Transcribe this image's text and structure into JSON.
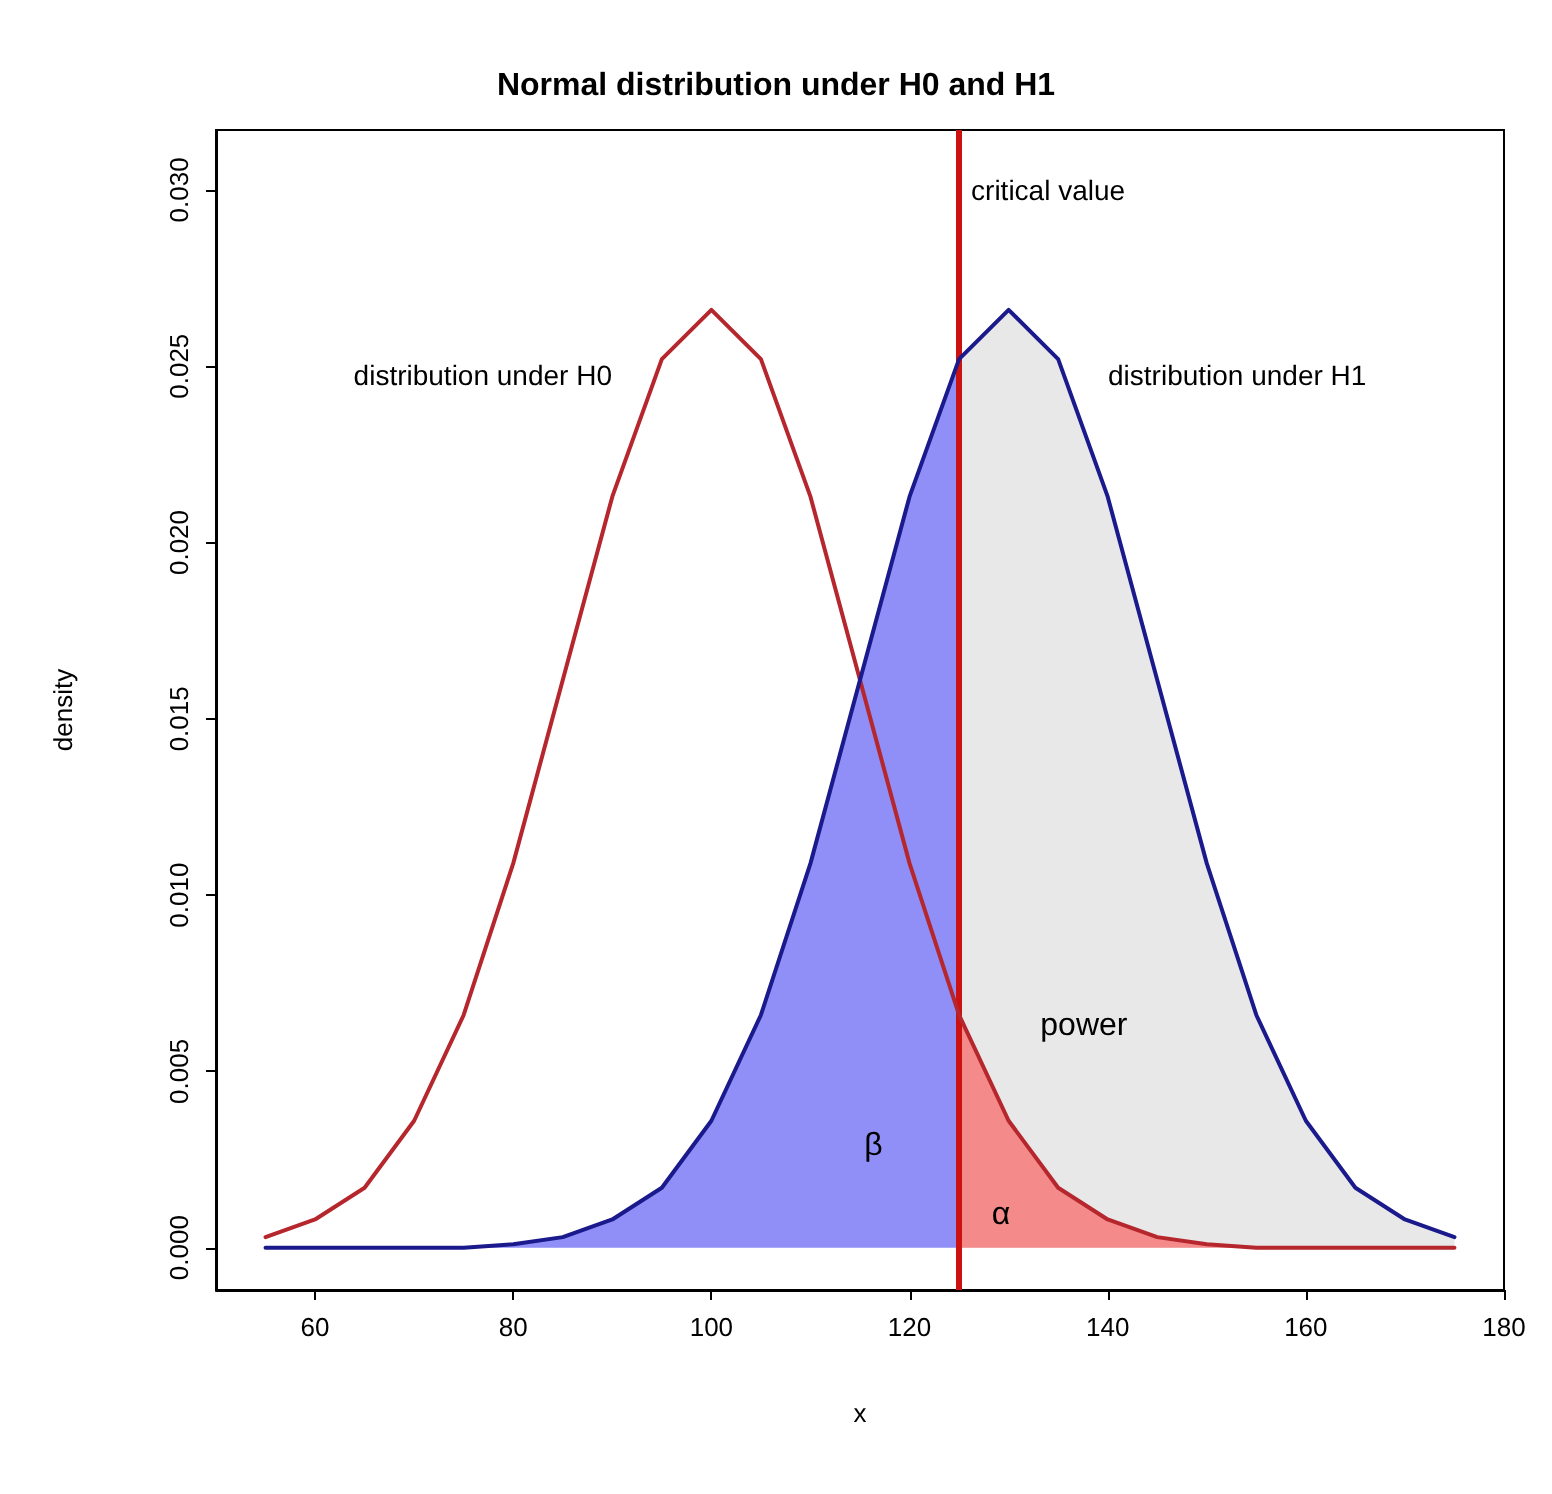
{
  "chart_data": {
    "type": "line",
    "title": "Normal distribution under H0 and H1",
    "xlabel": "x",
    "ylabel": "density",
    "xlim": [
      50,
      180
    ],
    "ylim": [
      -0.0012,
      0.0317
    ],
    "xticks": [
      60,
      80,
      100,
      120,
      140,
      160,
      180
    ],
    "yticks": [
      {
        "value": 0,
        "label": "0.000"
      },
      {
        "value": 0.005,
        "label": "0.005"
      },
      {
        "value": 0.01,
        "label": "0.010"
      },
      {
        "value": 0.015,
        "label": "0.015"
      },
      {
        "value": 0.02,
        "label": "0.020"
      },
      {
        "value": 0.025,
        "label": "0.025"
      },
      {
        "value": 0.03,
        "label": "0.030"
      }
    ],
    "grid": false,
    "legend": false,
    "marker": "none",
    "line_style": "solid",
    "series": [
      {
        "type": "area",
        "name": "β",
        "color": "#8f8ff7",
        "x": [
          55,
          60,
          65,
          70,
          75,
          80,
          85,
          90,
          95,
          100,
          105,
          110,
          115,
          120,
          125
        ],
        "values": [
          0,
          0,
          0,
          0,
          0,
          0.0001,
          0.0003,
          0.0008,
          0.0017,
          0.0036,
          0.0066,
          0.0109,
          0.0161,
          0.0213,
          0.0252
        ]
      },
      {
        "type": "area",
        "name": "power",
        "color": "#e8e8e8",
        "x": [
          125,
          130,
          135,
          140,
          145,
          150,
          155,
          160,
          165,
          170,
          175
        ],
        "values": [
          0.0252,
          0.0266,
          0.0252,
          0.0213,
          0.0161,
          0.0109,
          0.0066,
          0.0036,
          0.0017,
          0.0008,
          0.0003
        ]
      },
      {
        "type": "area",
        "name": "α",
        "color": "#f48a8a",
        "x": [
          125,
          130,
          135,
          140,
          145,
          150,
          155
        ],
        "values": [
          0.0066,
          0.0036,
          0.0017,
          0.0008,
          0.0003,
          0.0001,
          0
        ]
      },
      {
        "name": "distribution under H0",
        "color": "#b5272d",
        "x": [
          55,
          60,
          65,
          70,
          75,
          80,
          85,
          90,
          95,
          100,
          105,
          110,
          115,
          120,
          125,
          130,
          135,
          140,
          145,
          150,
          155,
          160,
          165,
          170,
          175
        ],
        "values": [
          0.0003,
          0.0008,
          0.0017,
          0.0036,
          0.0066,
          0.0109,
          0.0161,
          0.0213,
          0.0252,
          0.0266,
          0.0252,
          0.0213,
          0.0161,
          0.0109,
          0.0066,
          0.0036,
          0.0017,
          0.0008,
          0.0003,
          0.0001,
          0,
          0,
          0,
          0,
          0
        ]
      },
      {
        "name": "distribution under H1",
        "color": "#1a1a8c",
        "x": [
          55,
          60,
          65,
          70,
          75,
          80,
          85,
          90,
          95,
          100,
          105,
          110,
          115,
          120,
          125,
          130,
          135,
          140,
          145,
          150,
          155,
          160,
          165,
          170,
          175
        ],
        "values": [
          0,
          0,
          0,
          0,
          0,
          0.0001,
          0.0003,
          0.0008,
          0.0017,
          0.0036,
          0.0066,
          0.0109,
          0.0161,
          0.0213,
          0.0252,
          0.0266,
          0.0252,
          0.0213,
          0.0161,
          0.0109,
          0.0066,
          0.0036,
          0.0017,
          0.0008,
          0.0003
        ]
      }
    ],
    "ref_lines": [
      {
        "axis": "x",
        "value": 125,
        "label": "critical value",
        "color": "#cc1111",
        "line_style": "solid"
      }
    ]
  }
}
